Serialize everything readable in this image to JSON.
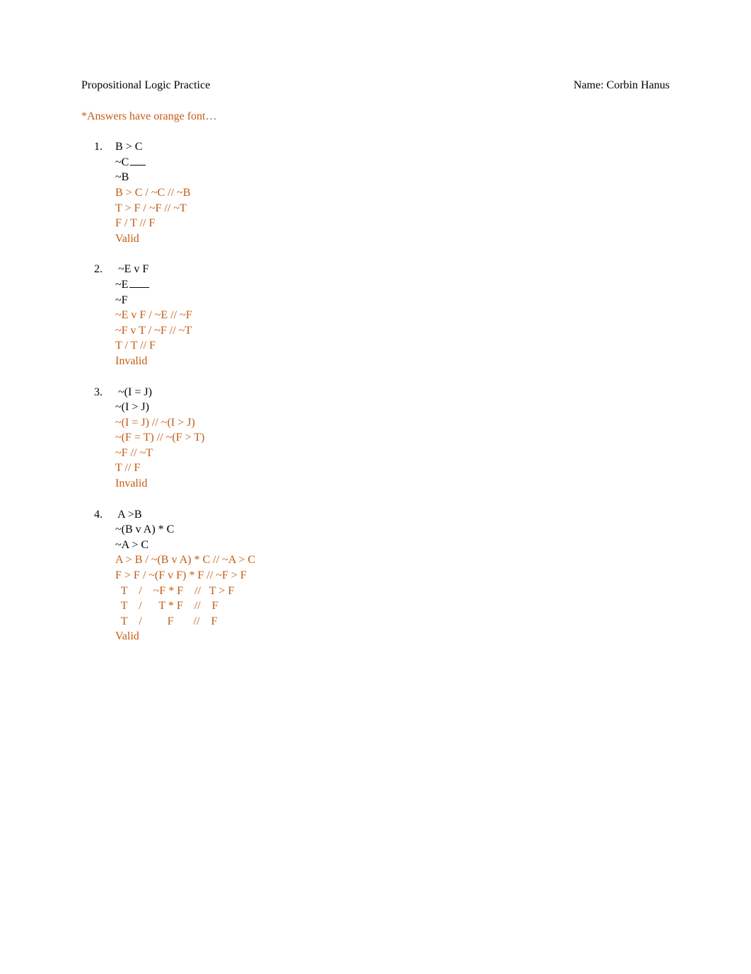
{
  "header": {
    "title_left": "Propositional Logic Practice",
    "title_right": "Name: Corbin Hanus"
  },
  "note": "*Answers have orange font…",
  "colors": {
    "answer": "#c45a10",
    "text": "#000000",
    "background": "#ffffff"
  },
  "typography": {
    "font_family": "Times New Roman",
    "font_size_pt": 12
  },
  "problems": [
    {
      "number": "1.",
      "given": [
        "B > C",
        "~C",
        "~B"
      ],
      "premise_underline_index": 1,
      "answer_lines": [
        "B > C / ~C // ~B",
        "T > F / ~F // ~T",
        "F / T // F",
        "Valid"
      ]
    },
    {
      "number": "2.",
      "given": [
        " ~E v F",
        "~E",
        "~F"
      ],
      "premise_underline_index": 1,
      "answer_lines": [
        "~E v F / ~E // ~F",
        "~F v T / ~F // ~T",
        "T / T // F",
        "Invalid"
      ]
    },
    {
      "number": "3.",
      "given": [
        " ~(I = J)",
        "~(I > J)"
      ],
      "premise_underline_index": -1,
      "answer_lines": [
        "~(I = J) // ~(I > J)",
        "~(F = T) // ~(F > T)",
        "~F // ~T",
        "T // F",
        "Invalid"
      ]
    },
    {
      "number": "4.",
      "given": [
        " A >B",
        "~(B v A) * C",
        "~A > C"
      ],
      "premise_underline_index": -1,
      "answer_lines": [
        "A > B / ~(B v A) * C // ~A > C",
        "F > F / ~(F v F) * F // ~F > F",
        "  T    /    ~F * F    //   T > F",
        "  T    /      T * F    //    F",
        "  T    /         F       //    F",
        "Valid"
      ]
    }
  ]
}
